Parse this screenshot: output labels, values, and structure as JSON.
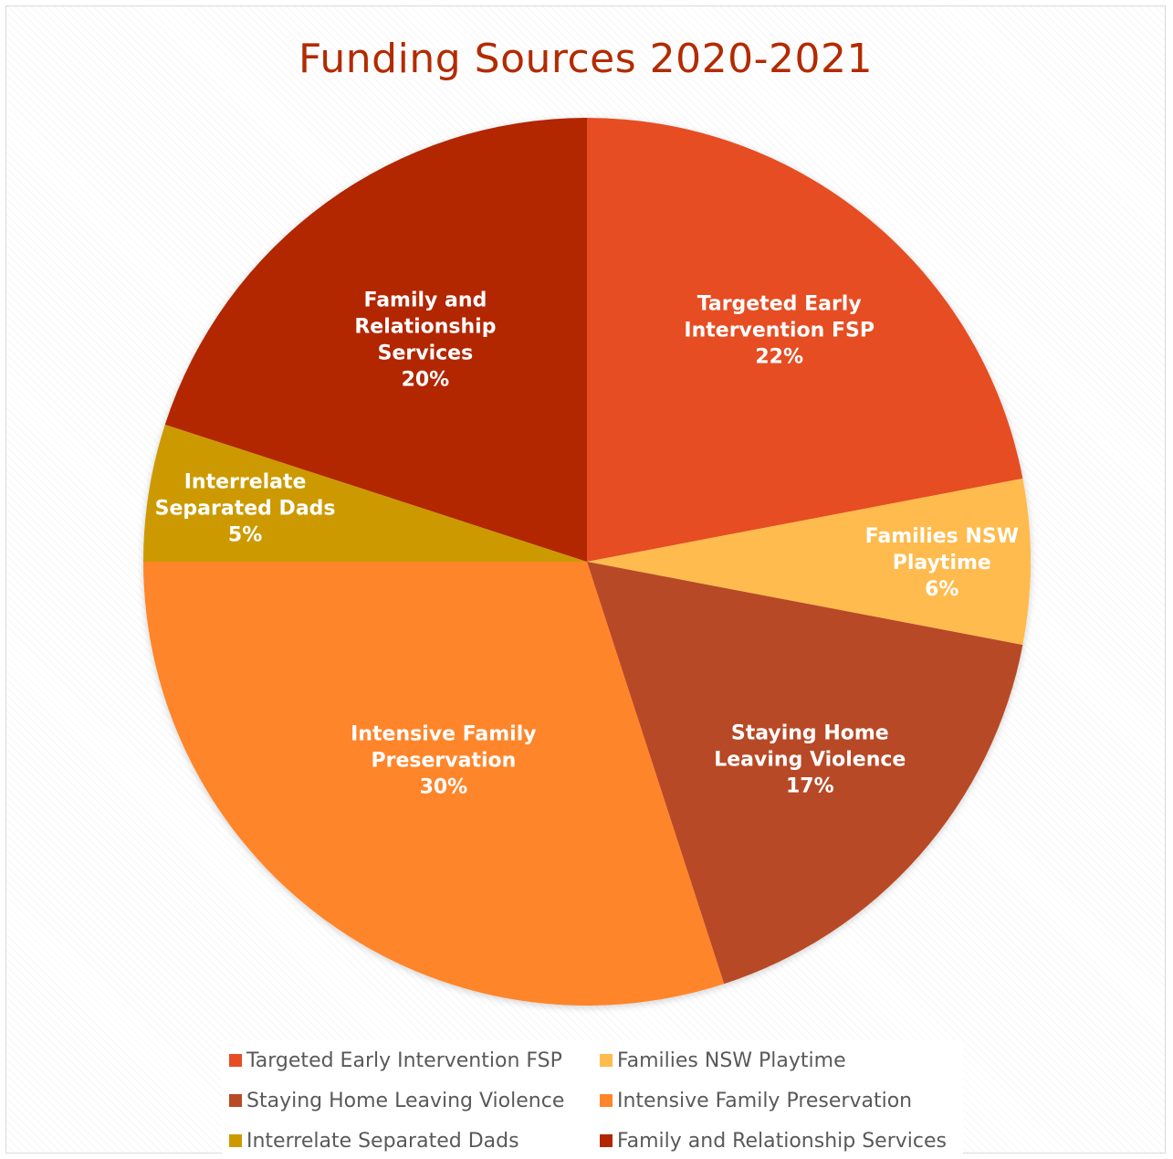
{
  "chart_data": {
    "type": "pie",
    "title": "Funding Sources 2020-2021",
    "legend_position": "bottom",
    "slices": [
      {
        "name": "Targeted Early Intervention FSP",
        "value": 22,
        "label_lines": [
          "Targeted Early",
          "Intervention FSP"
        ],
        "pct_label": "22%",
        "color": "#e64d23"
      },
      {
        "name": "Families NSW Playtime",
        "value": 6,
        "label_lines": [
          "Families NSW",
          "Playtime"
        ],
        "pct_label": "6%",
        "color": "#ffbb4d"
      },
      {
        "name": "Staying Home Leaving Violence",
        "value": 17,
        "label_lines": [
          "Staying Home",
          "Leaving Violence"
        ],
        "pct_label": "17%",
        "color": "#b84a26"
      },
      {
        "name": "Intensive Family Preservation",
        "value": 30,
        "label_lines": [
          "Intensive Family",
          "Preservation"
        ],
        "pct_label": "30%",
        "color": "#ff852b"
      },
      {
        "name": "Interrelate Separated Dads",
        "value": 5,
        "label_lines": [
          "Interrelate",
          "Separated Dads"
        ],
        "pct_label": "5%",
        "color": "#cc9a00"
      },
      {
        "name": "Family and Relationship Services",
        "value": 20,
        "label_lines": [
          "Family and",
          "Relationship",
          "Services"
        ],
        "pct_label": "20%",
        "color": "#b22600"
      }
    ]
  }
}
